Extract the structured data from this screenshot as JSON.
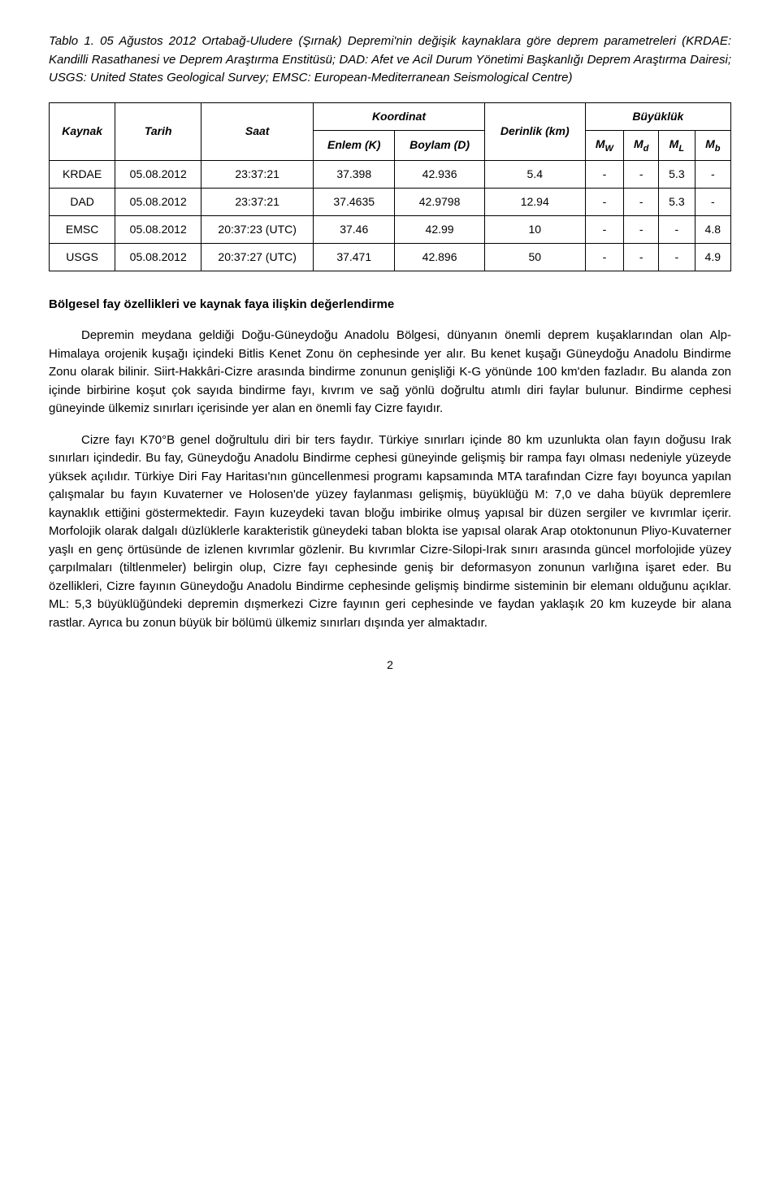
{
  "caption": "Tablo 1. 05 Ağustos 2012 Ortabağ-Uludere (Şırnak) Depremi'nin değişik kaynaklara göre deprem parametreleri (KRDAE: Kandilli Rasathanesi ve Deprem Araştırma Enstitüsü; DAD: Afet ve Acil Durum Yönetimi Başkanlığı Deprem Araştırma Dairesi; USGS: United States Geological Survey; EMSC: European-Mediterranean Seismological Centre)",
  "table": {
    "headers": {
      "kaynak": "Kaynak",
      "tarih": "Tarih",
      "saat": "Saat",
      "koordinat": "Koordinat",
      "enlem": "Enlem (K)",
      "boylam": "Boylam (D)",
      "derinlik": "Derinlik (km)",
      "buyukluk": "Büyüklük",
      "mw": "M",
      "mw_sub": "W",
      "md": "M",
      "md_sub": "d",
      "ml": "M",
      "ml_sub": "L",
      "mb": "M",
      "mb_sub": "b"
    },
    "rows": [
      {
        "kaynak": "KRDAE",
        "tarih": "05.08.2012",
        "saat": "23:37:21",
        "enlem": "37.398",
        "boylam": "42.936",
        "derinlik": "5.4",
        "mw": "-",
        "md": "-",
        "ml": "5.3",
        "mb": "-"
      },
      {
        "kaynak": "DAD",
        "tarih": "05.08.2012",
        "saat": "23:37:21",
        "enlem": "37.4635",
        "boylam": "42.9798",
        "derinlik": "12.94",
        "mw": "-",
        "md": "-",
        "ml": "5.3",
        "mb": "-"
      },
      {
        "kaynak": "EMSC",
        "tarih": "05.08.2012",
        "saat": "20:37:23 (UTC)",
        "enlem": "37.46",
        "boylam": "42.99",
        "derinlik": "10",
        "mw": "-",
        "md": "-",
        "ml": "-",
        "mb": "4.8"
      },
      {
        "kaynak": "USGS",
        "tarih": "05.08.2012",
        "saat": "20:37:27 (UTC)",
        "enlem": "37.471",
        "boylam": "42.896",
        "derinlik": "50",
        "mw": "-",
        "md": "-",
        "ml": "-",
        "mb": "4.9"
      }
    ]
  },
  "section_title": "Bölgesel fay özellikleri ve kaynak faya ilişkin değerlendirme",
  "para1": "Depremin meydana geldiği Doğu-Güneydoğu Anadolu Bölgesi, dünyanın önemli deprem kuşaklarından olan Alp-Himalaya orojenik kuşağı içindeki Bitlis Kenet Zonu ön cephesinde yer alır. Bu kenet kuşağı Güneydoğu Anadolu Bindirme Zonu olarak bilinir. Siirt-Hakkâri-Cizre arasında bindirme zonunun genişliği K-G yönünde 100 km'den fazladır. Bu alanda zon içinde birbirine koşut çok sayıda bindirme fayı, kıvrım ve sağ yönlü doğrultu atımlı diri faylar bulunur. Bindirme cephesi güneyinde ülkemiz sınırları içerisinde yer alan en önemli fay Cizre fayıdır.",
  "para2": "Cizre fayı K70°B genel doğrultulu diri bir ters faydır. Türkiye sınırları içinde 80 km uzunlukta olan fayın doğusu Irak sınırları içindedir. Bu fay, Güneydoğu Anadolu Bindirme cephesi güneyinde gelişmiş bir rampa fayı olması nedeniyle yüzeyde yüksek açılıdır. Türkiye Diri Fay Haritası'nın güncellenmesi programı kapsamında MTA tarafından Cizre fayı boyunca yapılan çalışmalar bu fayın Kuvaterner ve Holosen'de yüzey faylanması gelişmiş, büyüklüğü M: 7,0 ve daha büyük depremlere kaynaklık ettiğini göstermektedir. Fayın kuzeydeki tavan bloğu imbirike olmuş yapısal bir düzen sergiler ve kıvrımlar içerir. Morfolojik olarak dalgalı düzlüklerle karakteristik güneydeki taban blokta ise yapısal olarak Arap otoktonunun Pliyo-Kuvaterner yaşlı en genç örtüsünde de izlenen kıvrımlar gözlenir. Bu kıvrımlar Cizre-Silopi-Irak sınırı arasında güncel morfolojide yüzey çarpılmaları (tiltlenmeler) belirgin olup, Cizre fayı cephesinde geniş bir deformasyon zonunun varlığına işaret eder. Bu özellikleri, Cizre fayının Güneydoğu Anadolu Bindirme cephesinde gelişmiş bindirme sisteminin bir elemanı olduğunu açıklar. ML: 5,3 büyüklüğündeki depremin dışmerkezi Cizre fayının geri cephesinde ve faydan yaklaşık 20 km kuzeyde bir alana rastlar. Ayrıca bu zonun büyük bir bölümü ülkemiz sınırları dışında yer almaktadır.",
  "page_number": "2"
}
